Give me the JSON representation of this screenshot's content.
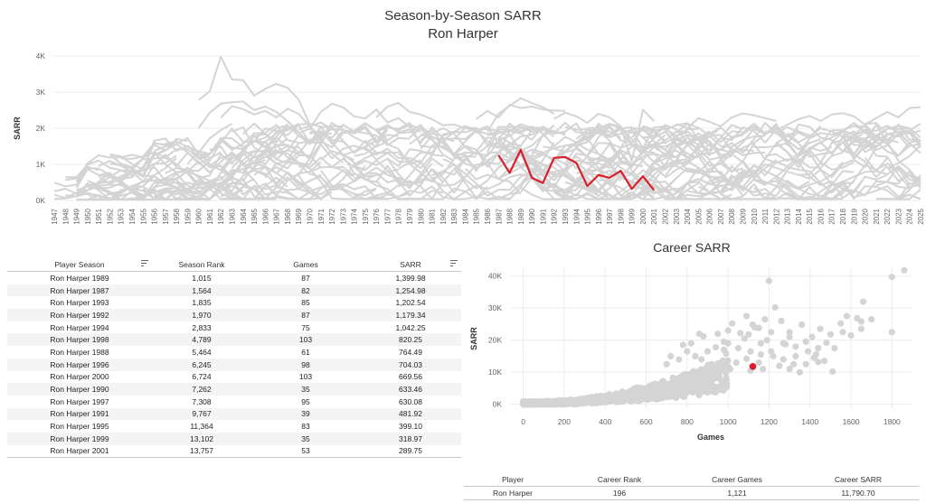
{
  "line_title": "Season-by-Season SARR",
  "line_subtitle": "Ron Harper",
  "scatter_title": "Career SARR",
  "colors": {
    "highlight": "#d81f2a",
    "background_series": "#d4d4d4",
    "grid": "#ececec",
    "axis_text": "#666666"
  },
  "chart_data": [
    {
      "type": "line",
      "title": "Season-by-Season SARR",
      "subtitle": "Ron Harper",
      "xlabel": "",
      "ylabel": "SARR",
      "ylim": [
        0,
        4000
      ],
      "yticks": [
        0,
        1000,
        2000,
        3000,
        4000
      ],
      "ytick_labels": [
        "0K",
        "1K",
        "2K",
        "3K",
        "4K"
      ],
      "x": [
        "1947",
        "1948",
        "1949",
        "1950",
        "1951",
        "1952",
        "1953",
        "1954",
        "1955",
        "1956",
        "1957",
        "1958",
        "1959",
        "1960",
        "1961",
        "1962",
        "1963",
        "1964",
        "1965",
        "1966",
        "1967",
        "1968",
        "1969",
        "1970",
        "1971",
        "1972",
        "1973",
        "1974",
        "1975",
        "1976",
        "1977",
        "1978",
        "1979",
        "1980",
        "1981",
        "1982",
        "1983",
        "1984",
        "1985",
        "1986",
        "1987",
        "1988",
        "1989",
        "1990",
        "1991",
        "1992",
        "1993",
        "1994",
        "1995",
        "1996",
        "1997",
        "1998",
        "1999",
        "2000",
        "2001",
        "2002",
        "2003",
        "2004",
        "2005",
        "2006",
        "2007",
        "2008",
        "2009",
        "2010",
        "2011",
        "2012",
        "2013",
        "2014",
        "2015",
        "2016",
        "2017",
        "2018",
        "2019",
        "2020",
        "2021",
        "2022",
        "2023",
        "2024",
        "2025"
      ],
      "grid": true,
      "legend": "none",
      "series": [
        {
          "name": "Ron Harper",
          "highlight": true,
          "x": [
            "1987",
            "1988",
            "1989",
            "1990",
            "1991",
            "1992",
            "1993",
            "1994",
            "1995",
            "1996",
            "1997",
            "1998",
            "1999",
            "2000",
            "2001"
          ],
          "values": [
            1254.98,
            764.49,
            1399.98,
            633.46,
            481.92,
            1179.34,
            1202.54,
            1042.25,
            399.1,
            704.03,
            630.08,
            820.25,
            318.97,
            669.56,
            289.75
          ]
        }
      ],
      "background_series": [
        {
          "x": [
            "1960",
            "1961",
            "1962",
            "1963",
            "1964",
            "1965",
            "1966",
            "1967",
            "1968",
            "1969",
            "1970"
          ],
          "values": [
            2780,
            3020,
            3980,
            3350,
            3330,
            2900,
            3090,
            3230,
            3120,
            2800,
            2100
          ]
        },
        {
          "x": [
            "1960",
            "1961",
            "1962",
            "1963",
            "1964",
            "1965",
            "1966",
            "1967",
            "1968",
            "1969"
          ],
          "values": [
            2010,
            2430,
            2680,
            2720,
            2740,
            2500,
            2600,
            2450,
            2200,
            1900
          ]
        },
        {
          "x": [
            "1962",
            "1963",
            "1964",
            "1965",
            "1966",
            "1967",
            "1968",
            "1969",
            "1970",
            "1971",
            "1972"
          ],
          "values": [
            2290,
            2610,
            2530,
            2380,
            2480,
            2300,
            2540,
            2400,
            2050,
            2160,
            1980
          ]
        },
        {
          "x": [
            "1970",
            "1971",
            "1972",
            "1973",
            "1974",
            "1975",
            "1976",
            "1977",
            "1978",
            "1979",
            "1980"
          ],
          "values": [
            1990,
            2450,
            2680,
            2580,
            2330,
            2270,
            2520,
            2160,
            2280,
            2030,
            1900
          ]
        },
        {
          "x": [
            "1976",
            "1977",
            "1978",
            "1979",
            "1980",
            "1981",
            "1982",
            "1983",
            "1984",
            "1985"
          ],
          "values": [
            2300,
            2600,
            2700,
            2450,
            2380,
            2250,
            2080,
            2100,
            2000,
            1950
          ]
        },
        {
          "x": [
            "1985",
            "1986",
            "1987",
            "1988",
            "1989",
            "1990",
            "1991",
            "1992",
            "1993"
          ],
          "values": [
            2250,
            2480,
            2300,
            2650,
            2560,
            2600,
            2520,
            2490,
            2480
          ]
        },
        {
          "x": [
            "1986",
            "1987",
            "1988",
            "1989",
            "1990",
            "1991",
            "1992"
          ],
          "values": [
            1900,
            2400,
            2620,
            2830,
            2700,
            2580,
            2400
          ]
        },
        {
          "x": [
            "1992",
            "1993",
            "1994",
            "1995",
            "1996",
            "1997",
            "1998",
            "1999",
            "2000",
            "2001"
          ],
          "values": [
            2260,
            2430,
            2330,
            2150,
            2400,
            2300,
            2050,
            1080,
            2510,
            2200
          ]
        },
        {
          "x": [
            "2003",
            "2004",
            "2005",
            "2006",
            "2007",
            "2008",
            "2009",
            "2010",
            "2011",
            "2012"
          ],
          "values": [
            2120,
            2000,
            2280,
            2180,
            2050,
            2300,
            2410,
            2360,
            2280,
            2200
          ]
        },
        {
          "x": [
            "2012",
            "2013",
            "2014",
            "2015",
            "2016",
            "2017",
            "2018",
            "2019",
            "2020",
            "2021",
            "2022",
            "2023",
            "2024",
            "2025"
          ],
          "values": [
            1950,
            2100,
            2250,
            2340,
            2200,
            2380,
            2420,
            2330,
            2100,
            2280,
            2450,
            2300,
            2560,
            2580
          ]
        }
      ]
    },
    {
      "type": "scatter",
      "title": "Career SARR",
      "xlabel": "Games",
      "ylabel": "SARR",
      "xlim": [
        -60,
        1900
      ],
      "ylim": [
        -1500,
        43000
      ],
      "xticks": [
        0,
        200,
        400,
        600,
        800,
        1000,
        1200,
        1400,
        1600,
        1800
      ],
      "yticks": [
        0,
        10000,
        20000,
        30000,
        40000
      ],
      "ytick_labels": [
        "0K",
        "10K",
        "20K",
        "30K",
        "40K"
      ],
      "grid": true,
      "legend": "none",
      "highlight": {
        "name": "Ron Harper",
        "x": 1121,
        "y": 11790.7
      },
      "outliers": [
        [
          1860,
          41800
        ],
        [
          1800,
          39700
        ],
        [
          1800,
          22500
        ],
        [
          1660,
          32000
        ],
        [
          1630,
          26800
        ],
        [
          1580,
          27500
        ],
        [
          1550,
          25200
        ],
        [
          1650,
          25800
        ],
        [
          1600,
          21500
        ],
        [
          1500,
          21800
        ],
        [
          1450,
          23500
        ],
        [
          1440,
          17500
        ],
        [
          1480,
          19200
        ],
        [
          1420,
          14500
        ],
        [
          1510,
          10200
        ],
        [
          1440,
          13200
        ],
        [
          1380,
          19500
        ],
        [
          1360,
          24800
        ],
        [
          1330,
          18000
        ],
        [
          1300,
          21000
        ],
        [
          1300,
          22500
        ],
        [
          1280,
          18700
        ],
        [
          1260,
          26000
        ],
        [
          1230,
          30200
        ],
        [
          1210,
          22500
        ],
        [
          1190,
          20000
        ],
        [
          1180,
          26500
        ],
        [
          1150,
          23800
        ],
        [
          1120,
          24800
        ],
        [
          1100,
          21800
        ],
        [
          1080,
          20500
        ],
        [
          1060,
          22200
        ],
        [
          1020,
          25200
        ],
        [
          1000,
          23000
        ],
        [
          980,
          19500
        ],
        [
          1050,
          17500
        ],
        [
          1110,
          16500
        ],
        [
          1160,
          15500
        ],
        [
          1220,
          15000
        ],
        [
          1270,
          14000
        ],
        [
          1330,
          15000
        ],
        [
          1380,
          12500
        ],
        [
          1430,
          15600
        ],
        [
          1470,
          13500
        ],
        [
          1250,
          12000
        ],
        [
          1210,
          16500
        ],
        [
          1150,
          13000
        ],
        [
          1090,
          14200
        ],
        [
          1040,
          13000
        ],
        [
          990,
          15800
        ],
        [
          940,
          17800
        ],
        [
          900,
          16500
        ],
        [
          880,
          21200
        ],
        [
          870,
          14000
        ],
        [
          840,
          15000
        ],
        [
          820,
          19000
        ],
        [
          800,
          16500
        ],
        [
          780,
          18500
        ],
        [
          760,
          14000
        ],
        [
          720,
          15000
        ],
        [
          700,
          12500
        ],
        [
          920,
          12200
        ],
        [
          960,
          11500
        ],
        [
          1010,
          11000
        ],
        [
          1110,
          10500
        ],
        [
          1170,
          11000
        ],
        [
          1300,
          11000
        ],
        [
          1350,
          10000
        ],
        [
          1000,
          19000
        ],
        [
          1200,
          38500
        ],
        [
          1130,
          24000
        ],
        [
          1090,
          27500
        ],
        [
          1390,
          16500
        ],
        [
          1410,
          21000
        ],
        [
          1520,
          17500
        ],
        [
          1560,
          22500
        ],
        [
          1700,
          26500
        ],
        [
          1650,
          23500
        ],
        [
          950,
          22000
        ],
        [
          1270,
          19000
        ],
        [
          1320,
          12500
        ],
        [
          1160,
          19000
        ],
        [
          860,
          22000
        ],
        [
          980,
          17000
        ]
      ]
    }
  ],
  "season_table": {
    "headers": [
      "Player Season",
      "Season Rank",
      "Games",
      "SARR"
    ],
    "rows": [
      [
        "Ron Harper 1989",
        "1,015",
        "87",
        "1,399.98"
      ],
      [
        "Ron Harper 1987",
        "1,564",
        "82",
        "1,254.98"
      ],
      [
        "Ron Harper 1993",
        "1,835",
        "85",
        "1,202.54"
      ],
      [
        "Ron Harper 1992",
        "1,970",
        "87",
        "1,179.34"
      ],
      [
        "Ron Harper 1994",
        "2,833",
        "75",
        "1,042.25"
      ],
      [
        "Ron Harper 1998",
        "4,789",
        "103",
        "820.25"
      ],
      [
        "Ron Harper 1988",
        "5,464",
        "61",
        "764.49"
      ],
      [
        "Ron Harper 1996",
        "6,245",
        "98",
        "704.03"
      ],
      [
        "Ron Harper 2000",
        "6,724",
        "103",
        "669.56"
      ],
      [
        "Ron Harper 1990",
        "7,262",
        "35",
        "633.46"
      ],
      [
        "Ron Harper 1997",
        "7,308",
        "95",
        "630.08"
      ],
      [
        "Ron Harper 1991",
        "9,767",
        "39",
        "481.92"
      ],
      [
        "Ron Harper 1995",
        "11,364",
        "83",
        "399.10"
      ],
      [
        "Ron Harper 1999",
        "13,102",
        "35",
        "318.97"
      ],
      [
        "Ron Harper 2001",
        "13,757",
        "53",
        "289.75"
      ]
    ]
  },
  "career_table": {
    "headers": [
      "Player",
      "Career Rank",
      "Career Games",
      "Career SARR"
    ],
    "rows": [
      [
        "Ron Harper",
        "196",
        "1,121",
        "11,790.70"
      ]
    ]
  }
}
